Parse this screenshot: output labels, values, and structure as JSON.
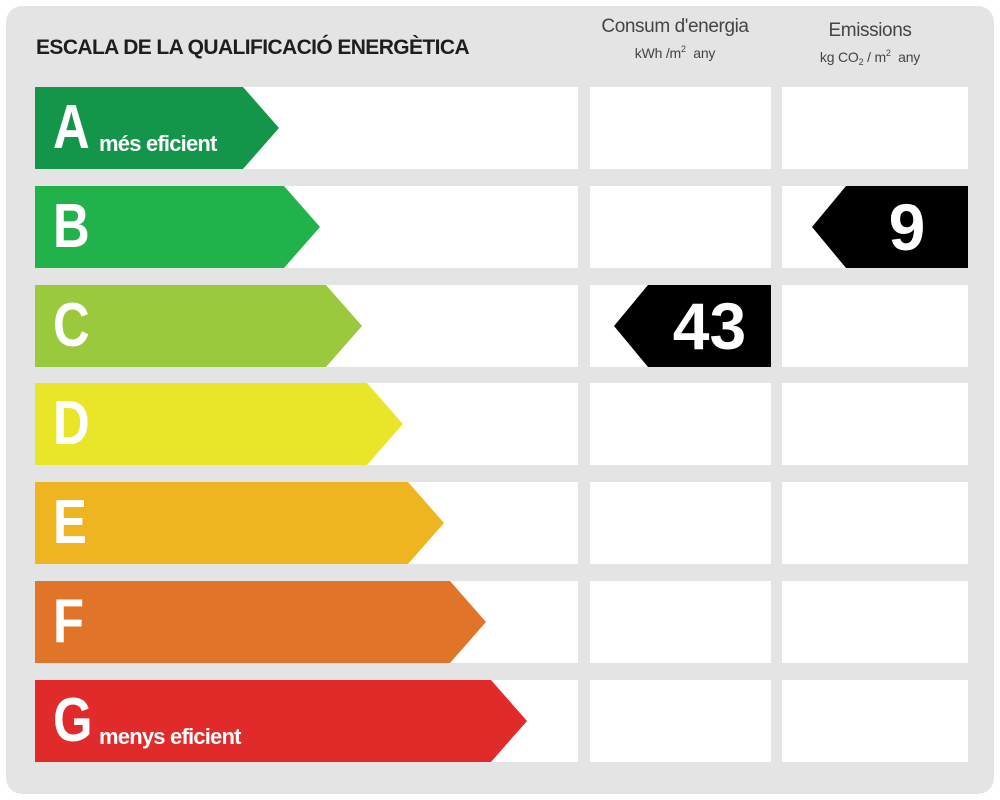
{
  "title": "ESCALA DE LA QUALIFICACIÓ ENERGÈTICA",
  "columns": {
    "consumption": {
      "name": "Consum d'energia",
      "unit_prefix": "kWh /m",
      "unit_sup": "2",
      "unit_suffix": "any"
    },
    "emissions": {
      "name": "Emissions",
      "unit_prefix": "kg CO",
      "unit_sub": "2",
      "unit_mid": " / m",
      "unit_sup": "2",
      "unit_suffix": "any"
    }
  },
  "ratings": [
    {
      "letter": "A",
      "label": "més eficient",
      "color": "#14964a"
    },
    {
      "letter": "B",
      "label": "",
      "color": "#22b24b"
    },
    {
      "letter": "C",
      "label": "",
      "color": "#9bc93d"
    },
    {
      "letter": "D",
      "label": "",
      "color": "#e9e62a"
    },
    {
      "letter": "E",
      "label": "",
      "color": "#efb520"
    },
    {
      "letter": "F",
      "label": "",
      "color": "#e0752a"
    },
    {
      "letter": "G",
      "label": "menys eficient",
      "color": "#e12a2a"
    }
  ],
  "indicators": {
    "consumption": {
      "value": "43",
      "rating": "C"
    },
    "emissions": {
      "value": "9",
      "rating": "B"
    }
  }
}
